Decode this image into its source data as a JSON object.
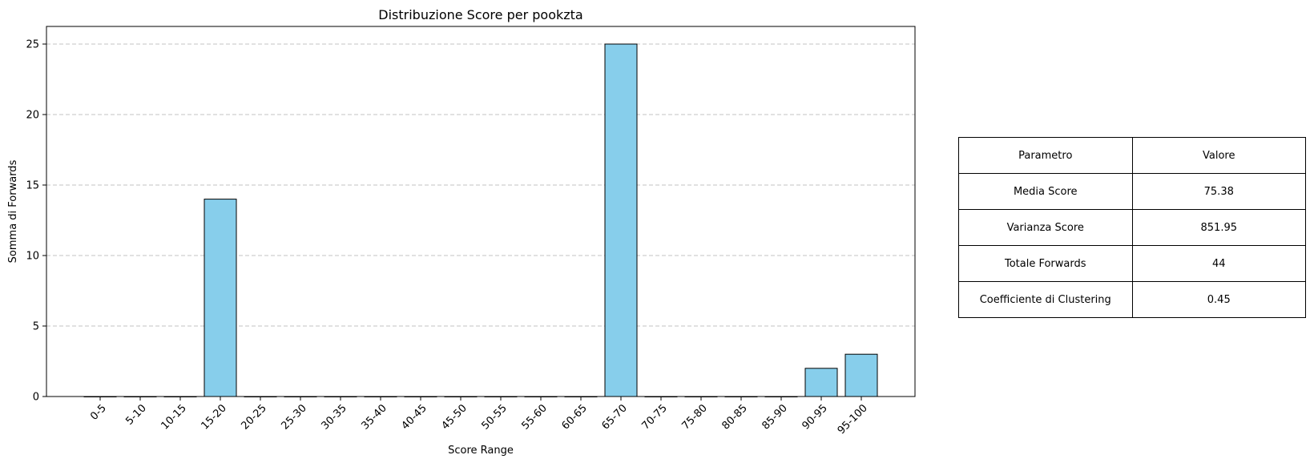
{
  "chart_data": {
    "type": "bar",
    "title": "Distribuzione Score per pookzta",
    "xlabel": "Score Range",
    "ylabel": "Somma di Forwards",
    "categories": [
      "0-5",
      "5-10",
      "10-15",
      "15-20",
      "20-25",
      "25-30",
      "30-35",
      "35-40",
      "40-45",
      "45-50",
      "50-55",
      "55-60",
      "60-65",
      "65-70",
      "70-75",
      "75-80",
      "80-85",
      "85-90",
      "90-95",
      "95-100"
    ],
    "values": [
      0,
      0,
      0,
      14,
      0,
      0,
      0,
      0,
      0,
      0,
      0,
      0,
      0,
      25,
      0,
      0,
      0,
      0,
      2,
      3
    ],
    "ylim": [
      0,
      26.25
    ],
    "yticks": [
      0,
      5,
      10,
      15,
      20,
      25
    ],
    "grid": "y-dashed",
    "bar_color": "#87CEEB",
    "edge_color": "#000000"
  },
  "stats_table": {
    "header": [
      "Parametro",
      "Valore"
    ],
    "rows": [
      [
        "Media Score",
        "75.38"
      ],
      [
        "Varianza Score",
        "851.95"
      ],
      [
        "Totale Forwards",
        "44"
      ],
      [
        "Coefficiente di Clustering",
        "0.45"
      ]
    ]
  }
}
